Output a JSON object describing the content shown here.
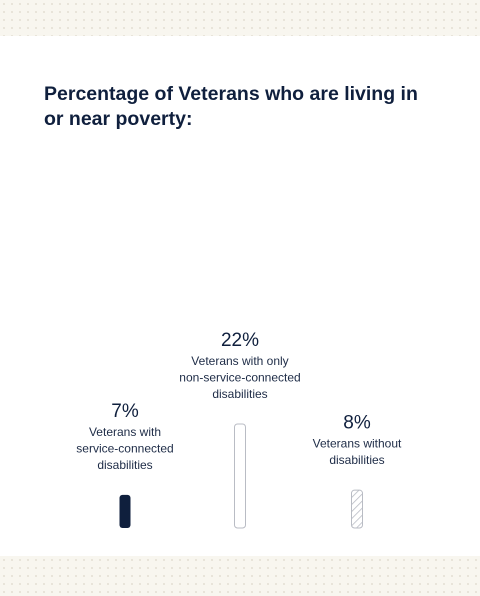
{
  "title": "Percentage of Veterans who are living in or near poverty:",
  "chart_data": {
    "type": "bar",
    "title": "Percentage of Veterans who are living in or near poverty:",
    "unit": "%",
    "ylim": [
      0,
      22
    ],
    "series": [
      {
        "value": 7,
        "value_label": "7%",
        "label_lines": [
          "Veterans with",
          "service-connected",
          "disabilities"
        ],
        "style": "solid",
        "color": "#0f1f3d"
      },
      {
        "value": 22,
        "value_label": "22%",
        "label_lines": [
          "Veterans with only",
          "non-service-connected",
          "disabilities"
        ],
        "style": "outline",
        "color": "#b9bcc4"
      },
      {
        "value": 8,
        "value_label": "8%",
        "label_lines": [
          "Veterans without",
          "disabilities"
        ],
        "style": "hatched",
        "color": "#b9bcc4"
      }
    ]
  }
}
